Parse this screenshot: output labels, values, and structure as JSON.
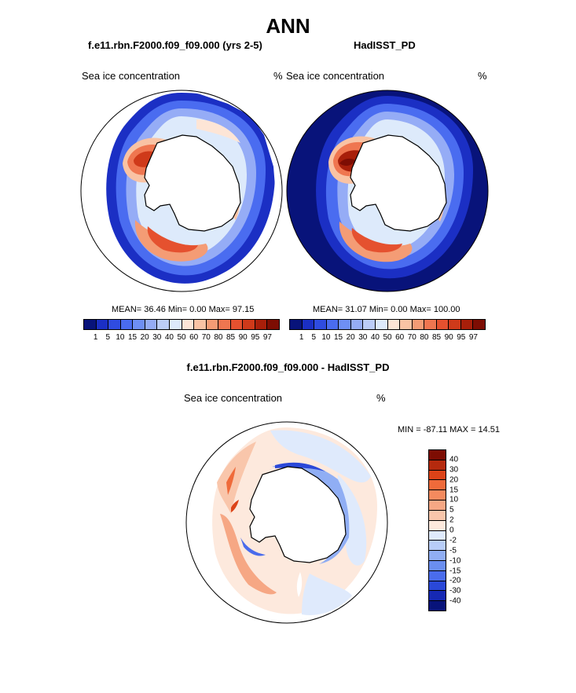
{
  "title": "ANN",
  "panels": [
    {
      "case": "f.e11.rbn.F2000.f09_f09.000 (yrs 2-5)",
      "field": "Sea ice concentration",
      "units": "%",
      "stats": {
        "mean": "36.46",
        "min": "0.00",
        "max": "97.15"
      }
    },
    {
      "case": "HadISST_PD",
      "field": "Sea ice concentration",
      "units": "%",
      "stats": {
        "mean": "31.07",
        "min": "0.00",
        "max": "100.00"
      }
    }
  ],
  "stat_labels": {
    "mean": "MEAN=",
    "min": "Min=",
    "max": "Max="
  },
  "diff": {
    "title": "f.e11.rbn.F2000.f09_f09.000 - HadISST_PD",
    "field": "Sea ice concentration",
    "units": "%",
    "minmax_text": "MIN = -87.11 MAX =  14.51"
  },
  "abs_colorbar": {
    "labels": [
      "1",
      "5",
      "10",
      "15",
      "20",
      "30",
      "40",
      "50",
      "60",
      "70",
      "80",
      "85",
      "90",
      "95",
      "97"
    ],
    "colors": [
      "#08137a",
      "#1b2fc4",
      "#2f4ce0",
      "#4a6cf0",
      "#6e8ff5",
      "#95acf6",
      "#bccdf8",
      "#ddeafb",
      "#fde5d6",
      "#f9c3a4",
      "#f49c75",
      "#ef7650",
      "#e5512f",
      "#cf3a1a",
      "#a81f0a",
      "#7d0d03"
    ]
  },
  "diff_colorbar": {
    "labels": [
      "40",
      "30",
      "20",
      "15",
      "10",
      "5",
      "2",
      "0",
      "-2",
      "-5",
      "-10",
      "-15",
      "-20",
      "-30",
      "-40"
    ],
    "colors": [
      "#7d0d03",
      "#b52a0e",
      "#dc4318",
      "#ef6a3a",
      "#f48a5e",
      "#f6a784",
      "#f9c6ab",
      "#fde9dd",
      "#dfeafc",
      "#b8cdf8",
      "#90aef4",
      "#6a8ef0",
      "#4a6cec",
      "#2a48d8",
      "#1629b4",
      "#08137a"
    ]
  }
}
